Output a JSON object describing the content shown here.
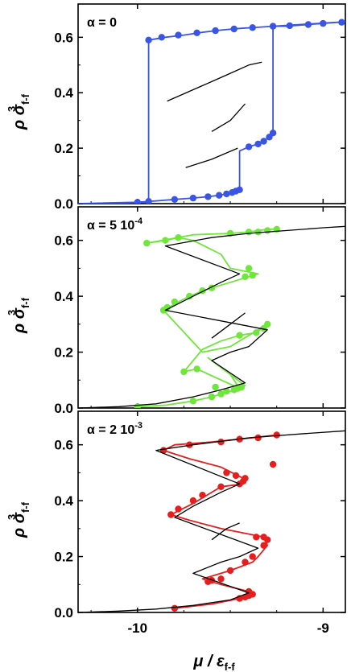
{
  "figure": {
    "xlabel_text": "μ / ε",
    "xlabel_sub": "f-f",
    "ylabel_text": "ρ σ",
    "ylabel_sub": "f-f",
    "ylabel_sup": "3"
  },
  "chart_data": [
    {
      "type": "line",
      "panel_label": "α = 0",
      "xlim": [
        -10.32,
        -8.88
      ],
      "ylim": [
        0,
        0.72
      ],
      "yticks": [
        0,
        0.2,
        0.4,
        0.6
      ],
      "ytick_labels": [
        "0.0",
        "0.2",
        "0.4",
        "0.6"
      ],
      "xticks": [
        -10,
        -9
      ],
      "xtick_labels": [
        "-10",
        "-9"
      ],
      "colors": {
        "simulation": "#3a54e6",
        "reference": "#000000"
      },
      "series": [
        {
          "role": "simulation",
          "path": [
            [
              -10.32,
              0.0
            ],
            [
              -10.0,
              0.005
            ],
            [
              -9.9,
              0.01
            ],
            [
              -9.8,
              0.015
            ],
            [
              -9.7,
              0.02
            ],
            [
              -9.62,
              0.025
            ],
            [
              -9.56,
              0.03
            ],
            [
              -9.52,
              0.035
            ],
            [
              -9.49,
              0.04
            ],
            [
              -9.47,
              0.045
            ],
            [
              -9.45,
              0.05
            ],
            [
              -9.45,
              0.19
            ],
            [
              -9.4,
              0.205
            ],
            [
              -9.35,
              0.215
            ],
            [
              -9.32,
              0.225
            ],
            [
              -9.29,
              0.24
            ],
            [
              -9.27,
              0.255
            ],
            [
              -9.27,
              0.64
            ],
            [
              -9.2,
              0.64
            ],
            [
              -9.1,
              0.645
            ],
            [
              -9.0,
              0.65
            ],
            [
              -8.9,
              0.655
            ],
            [
              -8.88,
              0.656
            ],
            [
              -9.27,
              0.64
            ],
            [
              -9.35,
              0.636
            ],
            [
              -9.45,
              0.632
            ],
            [
              -9.55,
              0.626
            ],
            [
              -9.65,
              0.618
            ],
            [
              -9.75,
              0.608
            ],
            [
              -9.85,
              0.6
            ],
            [
              -9.94,
              0.59
            ],
            [
              -9.94,
              0.005
            ],
            [
              -10.2,
              0.0
            ],
            [
              -10.32,
              0.0
            ]
          ],
          "markers": [
            [
              -10.0,
              0.005
            ],
            [
              -9.94,
              0.008
            ],
            [
              -9.8,
              0.015
            ],
            [
              -9.7,
              0.02
            ],
            [
              -9.62,
              0.025
            ],
            [
              -9.56,
              0.03
            ],
            [
              -9.52,
              0.035
            ],
            [
              -9.49,
              0.04
            ],
            [
              -9.47,
              0.045
            ],
            [
              -9.45,
              0.05
            ],
            [
              -9.4,
              0.205
            ],
            [
              -9.35,
              0.215
            ],
            [
              -9.32,
              0.225
            ],
            [
              -9.29,
              0.24
            ],
            [
              -9.27,
              0.255
            ],
            [
              -9.94,
              0.59
            ],
            [
              -9.87,
              0.6
            ],
            [
              -9.78,
              0.608
            ],
            [
              -9.68,
              0.616
            ],
            [
              -9.58,
              0.624
            ],
            [
              -9.48,
              0.63
            ],
            [
              -9.38,
              0.635
            ],
            [
              -9.27,
              0.64
            ],
            [
              -9.18,
              0.642
            ],
            [
              -9.08,
              0.646
            ],
            [
              -9.0,
              0.65
            ],
            [
              -8.9,
              0.654
            ]
          ]
        },
        {
          "role": "reference",
          "path": [
            [
              -9.84,
              0.37
            ],
            [
              -9.72,
              0.405
            ],
            [
              -9.6,
              0.44
            ],
            [
              -9.5,
              0.47
            ],
            [
              -9.4,
              0.5
            ],
            [
              -9.33,
              0.51
            ]
          ]
        },
        {
          "role": "reference",
          "path": [
            [
              -9.6,
              0.26
            ],
            [
              -9.5,
              0.3
            ],
            [
              -9.42,
              0.36
            ]
          ]
        },
        {
          "role": "reference",
          "path": [
            [
              -9.74,
              0.13
            ],
            [
              -9.6,
              0.16
            ],
            [
              -9.46,
              0.2
            ]
          ]
        }
      ]
    },
    {
      "type": "line",
      "panel_label": "α = 5 10",
      "panel_label_sup": "-4",
      "xlim": [
        -10.32,
        -8.88
      ],
      "ylim": [
        0,
        0.72
      ],
      "yticks": [
        0,
        0.2,
        0.4,
        0.6
      ],
      "ytick_labels": [
        "0.0",
        "0.2",
        "0.4",
        "0.6"
      ],
      "xticks": [
        -10,
        -9
      ],
      "xtick_labels": [
        "-10",
        "-9"
      ],
      "colors": {
        "simulation": "#6ee63a",
        "reference": "#000000"
      },
      "series": [
        {
          "role": "simulation",
          "path": [
            [
              -10.0,
              0.005
            ],
            [
              -9.85,
              0.01
            ],
            [
              -9.7,
              0.025
            ],
            [
              -9.6,
              0.04
            ],
            [
              -9.5,
              0.06
            ],
            [
              -9.42,
              0.08
            ],
            [
              -9.62,
              0.18
            ],
            [
              -9.5,
              0.12
            ],
            [
              -9.45,
              0.07
            ],
            [
              -9.68,
              0.14
            ],
            [
              -9.75,
              0.13
            ],
            [
              -9.65,
              0.21
            ],
            [
              -9.55,
              0.24
            ],
            [
              -9.45,
              0.26
            ],
            [
              -9.36,
              0.27
            ],
            [
              -9.3,
              0.3
            ],
            [
              -9.5,
              0.22
            ],
            [
              -9.65,
              0.2
            ],
            [
              -9.86,
              0.35
            ],
            [
              -9.75,
              0.39
            ],
            [
              -9.65,
              0.42
            ],
            [
              -9.5,
              0.45
            ],
            [
              -9.35,
              0.48
            ],
            [
              -9.5,
              0.5
            ],
            [
              -9.55,
              0.55
            ],
            [
              -9.7,
              0.6
            ],
            [
              -9.78,
              0.61
            ],
            [
              -9.85,
              0.6
            ],
            [
              -9.95,
              0.59
            ],
            [
              -9.7,
              0.62
            ],
            [
              -9.5,
              0.625
            ],
            [
              -9.4,
              0.63
            ],
            [
              -9.3,
              0.64
            ],
            [
              -9.25,
              0.64
            ]
          ],
          "markers": [
            [
              -10.0,
              0.005
            ],
            [
              -9.7,
              0.025
            ],
            [
              -9.6,
              0.04
            ],
            [
              -9.55,
              0.05
            ],
            [
              -9.48,
              0.065
            ],
            [
              -9.44,
              0.075
            ],
            [
              -9.58,
              0.075
            ],
            [
              -9.52,
              0.06
            ],
            [
              -9.46,
              0.07
            ],
            [
              -9.75,
              0.13
            ],
            [
              -9.68,
              0.14
            ],
            [
              -9.45,
              0.26
            ],
            [
              -9.36,
              0.27
            ],
            [
              -9.32,
              0.285
            ],
            [
              -9.3,
              0.3
            ],
            [
              -9.86,
              0.35
            ],
            [
              -9.84,
              0.36
            ],
            [
              -9.8,
              0.38
            ],
            [
              -9.72,
              0.4
            ],
            [
              -9.65,
              0.42
            ],
            [
              -9.6,
              0.43
            ],
            [
              -9.42,
              0.47
            ],
            [
              -9.4,
              0.5
            ],
            [
              -9.38,
              0.475
            ],
            [
              -9.95,
              0.59
            ],
            [
              -9.85,
              0.6
            ],
            [
              -9.78,
              0.61
            ],
            [
              -9.5,
              0.625
            ],
            [
              -9.4,
              0.63
            ],
            [
              -9.35,
              0.63
            ],
            [
              -9.3,
              0.635
            ],
            [
              -9.25,
              0.64
            ]
          ]
        },
        {
          "role": "reference",
          "path": [
            [
              -10.32,
              0.0
            ],
            [
              -10.1,
              0.005
            ],
            [
              -9.9,
              0.015
            ],
            [
              -9.7,
              0.04
            ],
            [
              -9.55,
              0.065
            ],
            [
              -9.42,
              0.09
            ],
            [
              -9.6,
              0.17
            ],
            [
              -9.5,
              0.2
            ],
            [
              -9.4,
              0.22
            ],
            [
              -9.3,
              0.28
            ],
            [
              -9.85,
              0.35
            ],
            [
              -9.7,
              0.4
            ],
            [
              -9.55,
              0.45
            ],
            [
              -9.45,
              0.48
            ],
            [
              -9.85,
              0.58
            ],
            [
              -9.6,
              0.61
            ],
            [
              -9.4,
              0.625
            ],
            [
              -9.2,
              0.635
            ],
            [
              -9.0,
              0.645
            ],
            [
              -8.88,
              0.65
            ]
          ]
        },
        {
          "role": "reference",
          "path": [
            [
              -9.6,
              0.25
            ],
            [
              -9.5,
              0.3
            ],
            [
              -9.42,
              0.34
            ]
          ]
        }
      ]
    },
    {
      "type": "line",
      "panel_label": "α = 2 10",
      "panel_label_sup": "-3",
      "xlim": [
        -10.32,
        -8.88
      ],
      "ylim": [
        0,
        0.72
      ],
      "yticks": [
        0,
        0.2,
        0.4,
        0.6
      ],
      "ytick_labels": [
        "0.0",
        "0.2",
        "0.4",
        "0.6"
      ],
      "xticks": [
        -10,
        -9
      ],
      "xtick_labels": [
        "-10",
        "-9"
      ],
      "colors": {
        "simulation": "#e61e1e",
        "reference": "#000000"
      },
      "series": [
        {
          "role": "simulation",
          "path": [
            [
              -9.8,
              0.015
            ],
            [
              -9.6,
              0.03
            ],
            [
              -9.45,
              0.05
            ],
            [
              -9.38,
              0.06
            ],
            [
              -9.4,
              0.075
            ],
            [
              -9.55,
              0.1
            ],
            [
              -9.6,
              0.11
            ],
            [
              -9.65,
              0.12
            ],
            [
              -9.5,
              0.15
            ],
            [
              -9.38,
              0.18
            ],
            [
              -9.35,
              0.2
            ],
            [
              -9.3,
              0.24
            ],
            [
              -9.32,
              0.27
            ],
            [
              -9.55,
              0.3
            ],
            [
              -9.72,
              0.33
            ],
            [
              -9.82,
              0.35
            ],
            [
              -9.7,
              0.39
            ],
            [
              -9.55,
              0.45
            ],
            [
              -9.43,
              0.46
            ],
            [
              -9.43,
              0.48
            ],
            [
              -9.55,
              0.52
            ],
            [
              -9.72,
              0.55
            ],
            [
              -9.86,
              0.58
            ],
            [
              -9.8,
              0.6
            ],
            [
              -9.6,
              0.61
            ],
            [
              -9.45,
              0.62
            ],
            [
              -9.25,
              0.635
            ]
          ],
          "markers": [
            [
              -9.8,
              0.015
            ],
            [
              -9.45,
              0.05
            ],
            [
              -9.42,
              0.055
            ],
            [
              -9.4,
              0.06
            ],
            [
              -9.38,
              0.065
            ],
            [
              -9.4,
              0.075
            ],
            [
              -9.62,
              0.11
            ],
            [
              -9.6,
              0.115
            ],
            [
              -9.55,
              0.12
            ],
            [
              -9.5,
              0.15
            ],
            [
              -9.42,
              0.18
            ],
            [
              -9.38,
              0.2
            ],
            [
              -9.32,
              0.24
            ],
            [
              -9.3,
              0.26
            ],
            [
              -9.32,
              0.27
            ],
            [
              -9.36,
              0.27
            ],
            [
              -9.82,
              0.35
            ],
            [
              -9.78,
              0.37
            ],
            [
              -9.7,
              0.4
            ],
            [
              -9.65,
              0.42
            ],
            [
              -9.55,
              0.45
            ],
            [
              -9.45,
              0.46
            ],
            [
              -9.43,
              0.47
            ],
            [
              -9.42,
              0.48
            ],
            [
              -9.47,
              0.49
            ],
            [
              -9.52,
              0.5
            ],
            [
              -9.27,
              0.53
            ],
            [
              -9.86,
              0.58
            ],
            [
              -9.72,
              0.6
            ],
            [
              -9.55,
              0.61
            ],
            [
              -9.45,
              0.62
            ],
            [
              -9.35,
              0.625
            ],
            [
              -9.25,
              0.635
            ]
          ]
        },
        {
          "role": "reference",
          "path": [
            [
              -10.32,
              0.0
            ],
            [
              -10.1,
              0.005
            ],
            [
              -9.9,
              0.012
            ],
            [
              -9.7,
              0.025
            ],
            [
              -9.5,
              0.045
            ],
            [
              -9.4,
              0.07
            ],
            [
              -9.7,
              0.14
            ],
            [
              -9.55,
              0.18
            ],
            [
              -9.45,
              0.2
            ],
            [
              -9.35,
              0.23
            ],
            [
              -9.8,
              0.34
            ],
            [
              -9.7,
              0.38
            ],
            [
              -9.55,
              0.43
            ],
            [
              -9.45,
              0.46
            ],
            [
              -9.9,
              0.58
            ],
            [
              -9.7,
              0.6
            ],
            [
              -9.4,
              0.625
            ],
            [
              -9.1,
              0.64
            ],
            [
              -8.88,
              0.65
            ]
          ]
        },
        {
          "role": "reference",
          "path": [
            [
              -9.6,
              0.26
            ],
            [
              -9.52,
              0.3
            ],
            [
              -9.45,
              0.32
            ]
          ]
        }
      ]
    }
  ]
}
